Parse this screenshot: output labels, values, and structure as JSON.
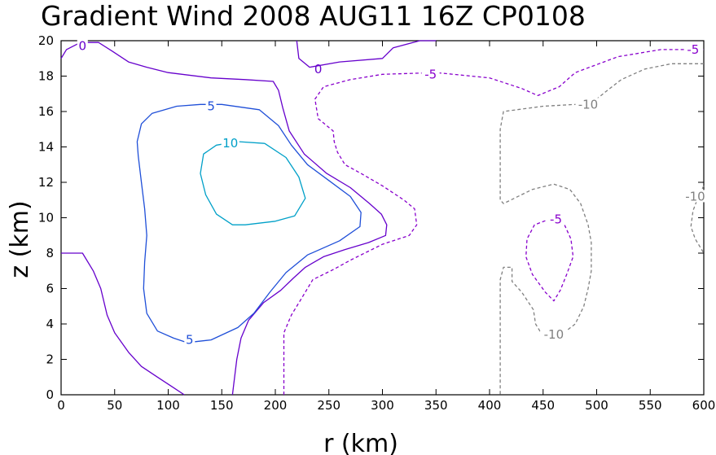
{
  "chart_data": {
    "type": "contour",
    "title": "Gradient Wind 2008 AUG11 16Z   CP0108",
    "xlabel": "r (km)",
    "ylabel": "z (km)",
    "xlim": [
      0,
      600
    ],
    "ylim": [
      0,
      20
    ],
    "xticks": [
      "0",
      "50",
      "100",
      "150",
      "200",
      "250",
      "300",
      "350",
      "400",
      "450",
      "500",
      "550",
      "600"
    ],
    "yticks": [
      "0",
      "2",
      "4",
      "6",
      "8",
      "10",
      "12",
      "14",
      "16",
      "18",
      "20"
    ],
    "grid": false,
    "negative_contours_dashed": true,
    "contours": [
      {
        "level": "0",
        "color": "#6600cc",
        "dashed": false,
        "label_at": [
          [
            20,
            19.7
          ],
          [
            240,
            18.4
          ]
        ],
        "points": [
          [
            0,
            19.0
          ],
          [
            5,
            19.5
          ],
          [
            18,
            19.9
          ],
          [
            35,
            19.9
          ],
          [
            48,
            19.4
          ],
          [
            63,
            18.8
          ],
          [
            80,
            18.5
          ],
          [
            100,
            18.2
          ],
          [
            140,
            17.9
          ],
          [
            172,
            17.8
          ],
          [
            198,
            17.7
          ],
          [
            203,
            17.2
          ],
          [
            207,
            16.2
          ],
          [
            213,
            14.9
          ],
          [
            227,
            13.6
          ],
          [
            248,
            12.5
          ],
          [
            270,
            11.7
          ],
          [
            288,
            10.8
          ],
          [
            299,
            10.2
          ],
          [
            304,
            9.6
          ],
          [
            303,
            9.0
          ],
          [
            287,
            8.6
          ],
          [
            265,
            8.2
          ],
          [
            245,
            7.8
          ],
          [
            228,
            7.2
          ],
          [
            217,
            6.6
          ],
          [
            205,
            5.9
          ],
          [
            189,
            5.2
          ],
          [
            175,
            4.2
          ],
          [
            168,
            3.2
          ],
          [
            164,
            2.0
          ],
          [
            161,
            0.5
          ],
          [
            160,
            0
          ]
        ]
      },
      {
        "level": "0",
        "color": "#6600cc",
        "dashed": false,
        "label_at": [],
        "points": [
          [
            0,
            8.0
          ],
          [
            20,
            8.0
          ],
          [
            30,
            7.0
          ],
          [
            37,
            6.0
          ],
          [
            43,
            4.5
          ],
          [
            50,
            3.5
          ],
          [
            63,
            2.4
          ],
          [
            75,
            1.6
          ],
          [
            90,
            1.0
          ],
          [
            105,
            0.4
          ],
          [
            115,
            0
          ]
        ]
      },
      {
        "level": "0",
        "color": "#6600cc",
        "dashed": false,
        "label_at": [],
        "points": [
          [
            220,
            20.0
          ],
          [
            222,
            19.0
          ],
          [
            232,
            18.5
          ],
          [
            260,
            18.8
          ],
          [
            300,
            19.0
          ],
          [
            310,
            19.6
          ],
          [
            335,
            20.0
          ],
          [
            350,
            20.0
          ]
        ]
      },
      {
        "level": "5",
        "color": "#1f4fd8",
        "dashed": false,
        "label_at": [
          [
            140,
            16.3
          ],
          [
            120,
            3.1
          ]
        ],
        "points": [
          [
            115,
            3.0
          ],
          [
            105,
            3.2
          ],
          [
            90,
            3.6
          ],
          [
            80,
            4.6
          ],
          [
            77,
            6.0
          ],
          [
            78,
            7.5
          ],
          [
            80,
            9.0
          ],
          [
            78,
            10.5
          ],
          [
            75,
            12.0
          ],
          [
            72,
            13.5
          ],
          [
            71,
            14.3
          ],
          [
            75,
            15.3
          ],
          [
            85,
            15.9
          ],
          [
            108,
            16.3
          ],
          [
            130,
            16.4
          ],
          [
            150,
            16.4
          ],
          [
            185,
            16.1
          ],
          [
            203,
            15.2
          ],
          [
            215,
            14.1
          ],
          [
            230,
            13.0
          ],
          [
            250,
            12.1
          ],
          [
            270,
            11.2
          ],
          [
            280,
            10.3
          ],
          [
            279,
            9.5
          ],
          [
            260,
            8.7
          ],
          [
            230,
            7.9
          ],
          [
            210,
            6.9
          ],
          [
            195,
            5.8
          ],
          [
            180,
            4.6
          ],
          [
            165,
            3.8
          ],
          [
            140,
            3.1
          ],
          [
            125,
            3.0
          ],
          [
            115,
            3.0
          ]
        ]
      },
      {
        "level": "10",
        "color": "#00a0c8",
        "dashed": false,
        "label_at": [
          [
            158,
            14.2
          ]
        ],
        "points": [
          [
            190,
            14.2
          ],
          [
            210,
            13.4
          ],
          [
            222,
            12.3
          ],
          [
            228,
            11.1
          ],
          [
            218,
            10.1
          ],
          [
            200,
            9.8
          ],
          [
            172,
            9.6
          ],
          [
            160,
            9.6
          ],
          [
            145,
            10.2
          ],
          [
            135,
            11.3
          ],
          [
            130,
            12.5
          ],
          [
            133,
            13.6
          ],
          [
            145,
            14.1
          ],
          [
            165,
            14.3
          ],
          [
            190,
            14.2
          ]
        ]
      },
      {
        "level": "-5",
        "color": "#8800cc",
        "dashed": true,
        "label_at": [
          [
            345,
            18.1
          ],
          [
            590,
            19.5
          ]
        ],
        "points": [
          [
            208,
            0
          ],
          [
            208,
            3.5
          ],
          [
            215,
            4.5
          ],
          [
            225,
            5.5
          ],
          [
            235,
            6.5
          ],
          [
            255,
            7.1
          ],
          [
            270,
            7.6
          ],
          [
            300,
            8.5
          ],
          [
            325,
            9.0
          ],
          [
            332,
            9.6
          ],
          [
            330,
            10.5
          ],
          [
            320,
            11.0
          ],
          [
            300,
            11.8
          ],
          [
            280,
            12.5
          ],
          [
            265,
            13.0
          ],
          [
            258,
            13.7
          ],
          [
            255,
            14.3
          ],
          [
            254,
            14.9
          ],
          [
            240,
            15.6
          ],
          [
            237,
            16.7
          ],
          [
            245,
            17.4
          ],
          [
            270,
            17.8
          ],
          [
            300,
            18.1
          ],
          [
            350,
            18.2
          ],
          [
            400,
            17.9
          ],
          [
            430,
            17.3
          ],
          [
            445,
            16.9
          ],
          [
            465,
            17.4
          ],
          [
            480,
            18.2
          ],
          [
            520,
            19.1
          ],
          [
            560,
            19.5
          ],
          [
            600,
            19.5
          ]
        ]
      },
      {
        "level": "-5",
        "color": "#8800cc",
        "dashed": true,
        "label_at": [
          [
            462,
            9.9
          ]
        ],
        "points": [
          [
            455,
            9.9
          ],
          [
            470,
            9.6
          ],
          [
            476,
            8.8
          ],
          [
            478,
            7.8
          ],
          [
            472,
            6.8
          ],
          [
            466,
            5.9
          ],
          [
            460,
            5.3
          ],
          [
            452,
            5.8
          ],
          [
            440,
            6.8
          ],
          [
            434,
            7.8
          ],
          [
            435,
            8.8
          ],
          [
            442,
            9.6
          ],
          [
            455,
            9.9
          ]
        ]
      },
      {
        "level": "-10",
        "color": "#808080",
        "dashed": true,
        "label_at": [
          [
            492,
            16.4
          ],
          [
            460,
            3.4
          ]
        ],
        "points": [
          [
            600,
            18.7
          ],
          [
            570,
            18.7
          ],
          [
            545,
            18.4
          ],
          [
            523,
            17.8
          ],
          [
            508,
            17.1
          ],
          [
            498,
            16.6
          ],
          [
            480,
            16.4
          ],
          [
            450,
            16.3
          ],
          [
            413,
            16.0
          ],
          [
            410,
            15.0
          ],
          [
            410,
            11.0
          ],
          [
            413,
            10.8
          ],
          [
            440,
            11.6
          ],
          [
            460,
            11.9
          ],
          [
            475,
            11.6
          ],
          [
            485,
            10.8
          ],
          [
            492,
            9.6
          ],
          [
            495,
            8.6
          ],
          [
            495,
            7.0
          ],
          [
            492,
            6.0
          ],
          [
            488,
            5.0
          ],
          [
            480,
            4.0
          ],
          [
            465,
            3.3
          ],
          [
            455,
            3.5
          ],
          [
            447,
            3.6
          ],
          [
            443,
            4.0
          ],
          [
            441,
            4.8
          ],
          [
            430,
            5.8
          ],
          [
            421,
            6.4
          ],
          [
            421,
            7.2
          ],
          [
            413,
            7.2
          ],
          [
            410,
            6.5
          ],
          [
            410,
            0
          ]
        ]
      },
      {
        "level": "-10",
        "color": "#808080",
        "dashed": true,
        "label_at": [
          [
            592,
            11.2
          ]
        ],
        "points": [
          [
            600,
            11.8
          ],
          [
            595,
            11.2
          ],
          [
            590,
            10.4
          ],
          [
            588,
            9.5
          ],
          [
            592,
            8.8
          ],
          [
            598,
            8.2
          ],
          [
            600,
            8.0
          ]
        ]
      }
    ]
  }
}
